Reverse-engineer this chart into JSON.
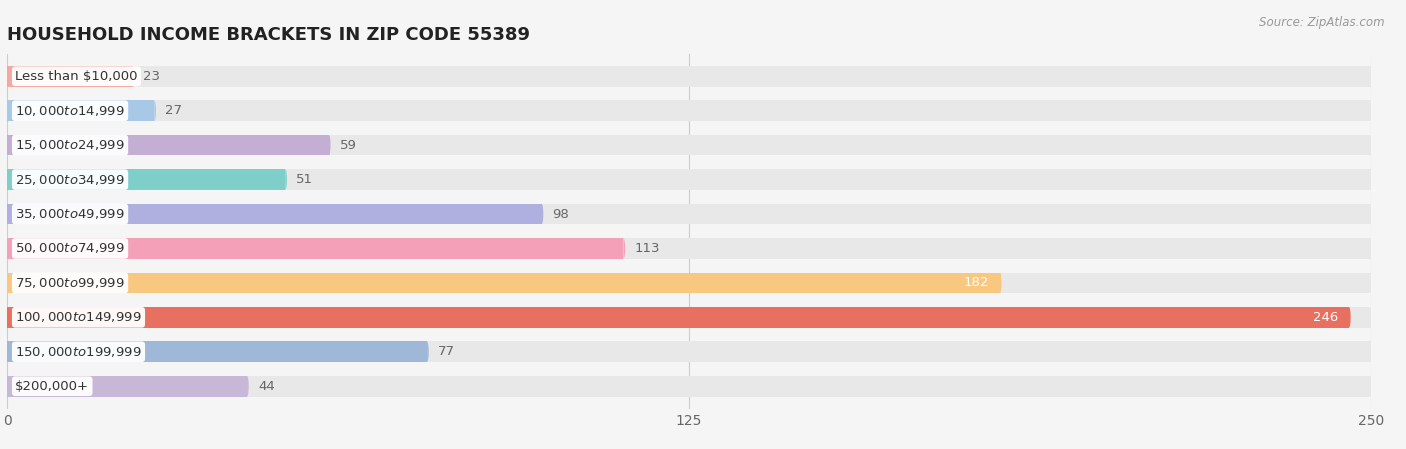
{
  "title": "HOUSEHOLD INCOME BRACKETS IN ZIP CODE 55389",
  "source": "Source: ZipAtlas.com",
  "categories": [
    "Less than $10,000",
    "$10,000 to $14,999",
    "$15,000 to $24,999",
    "$25,000 to $34,999",
    "$35,000 to $49,999",
    "$50,000 to $74,999",
    "$75,000 to $99,999",
    "$100,000 to $149,999",
    "$150,000 to $199,999",
    "$200,000+"
  ],
  "values": [
    23,
    27,
    59,
    51,
    98,
    113,
    182,
    246,
    77,
    44
  ],
  "bar_colors": [
    "#f4a8a0",
    "#a8c8e8",
    "#c4aed4",
    "#7ececa",
    "#b0b0e0",
    "#f4a0b8",
    "#f8c880",
    "#e87060",
    "#a0b8d8",
    "#c8b8d8"
  ],
  "value_label_colors": [
    "#666666",
    "#666666",
    "#666666",
    "#666666",
    "#666666",
    "#666666",
    "#ffffff",
    "#ffffff",
    "#666666",
    "#666666"
  ],
  "background_color": "#f5f5f5",
  "bar_bg_color": "#e8e8e8",
  "xlim_max": 250,
  "xticks": [
    0,
    125,
    250
  ],
  "title_fontsize": 13,
  "label_fontsize": 9.5,
  "value_fontsize": 9.5
}
